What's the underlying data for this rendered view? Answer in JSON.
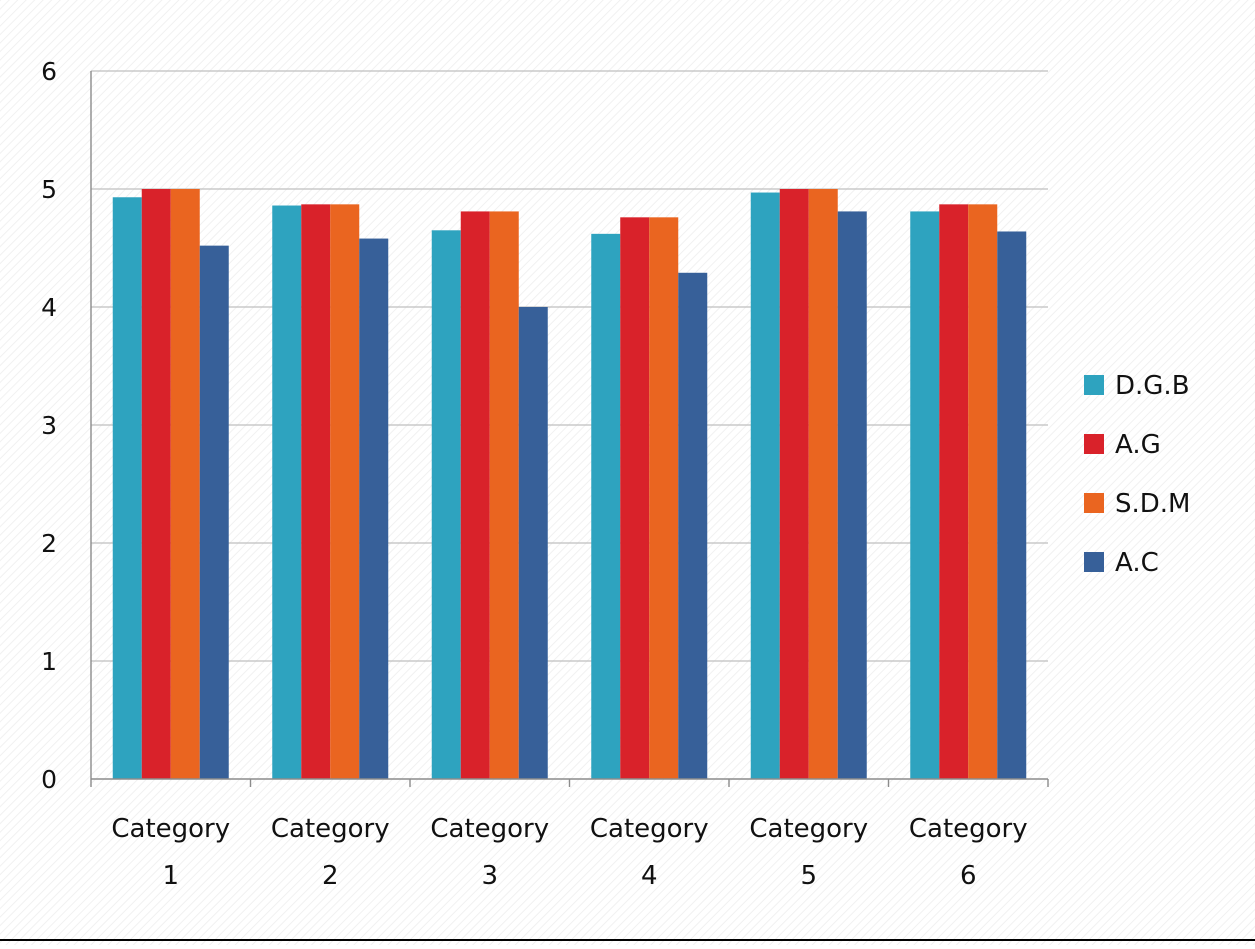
{
  "chart_data": {
    "type": "bar",
    "title": "",
    "xlabel": "",
    "ylabel": "",
    "categories": [
      [
        "Category",
        "1"
      ],
      [
        "Category",
        "2"
      ],
      [
        "Category",
        "3"
      ],
      [
        "Category",
        "4"
      ],
      [
        "Category",
        "5"
      ],
      [
        "Category",
        "6"
      ]
    ],
    "ylim": [
      0,
      6
    ],
    "yticks": [
      "0",
      "1",
      "2",
      "3",
      "4",
      "5",
      "6"
    ],
    "grid": true,
    "legend_position": "right",
    "series": [
      {
        "name": "D.G.B",
        "color": "#2ea3bf",
        "values": [
          4.93,
          4.86,
          4.65,
          4.62,
          4.97,
          4.81
        ]
      },
      {
        "name": "A.G",
        "color": "#d9222a",
        "values": [
          5.0,
          4.87,
          4.81,
          4.76,
          5.0,
          4.87
        ]
      },
      {
        "name": "S.D.M",
        "color": "#ea6520",
        "values": [
          5.0,
          4.87,
          4.81,
          4.76,
          5.0,
          4.87
        ]
      },
      {
        "name": "A.C",
        "color": "#376099",
        "values": [
          4.52,
          4.58,
          4.0,
          4.29,
          4.81,
          4.64
        ]
      }
    ]
  }
}
